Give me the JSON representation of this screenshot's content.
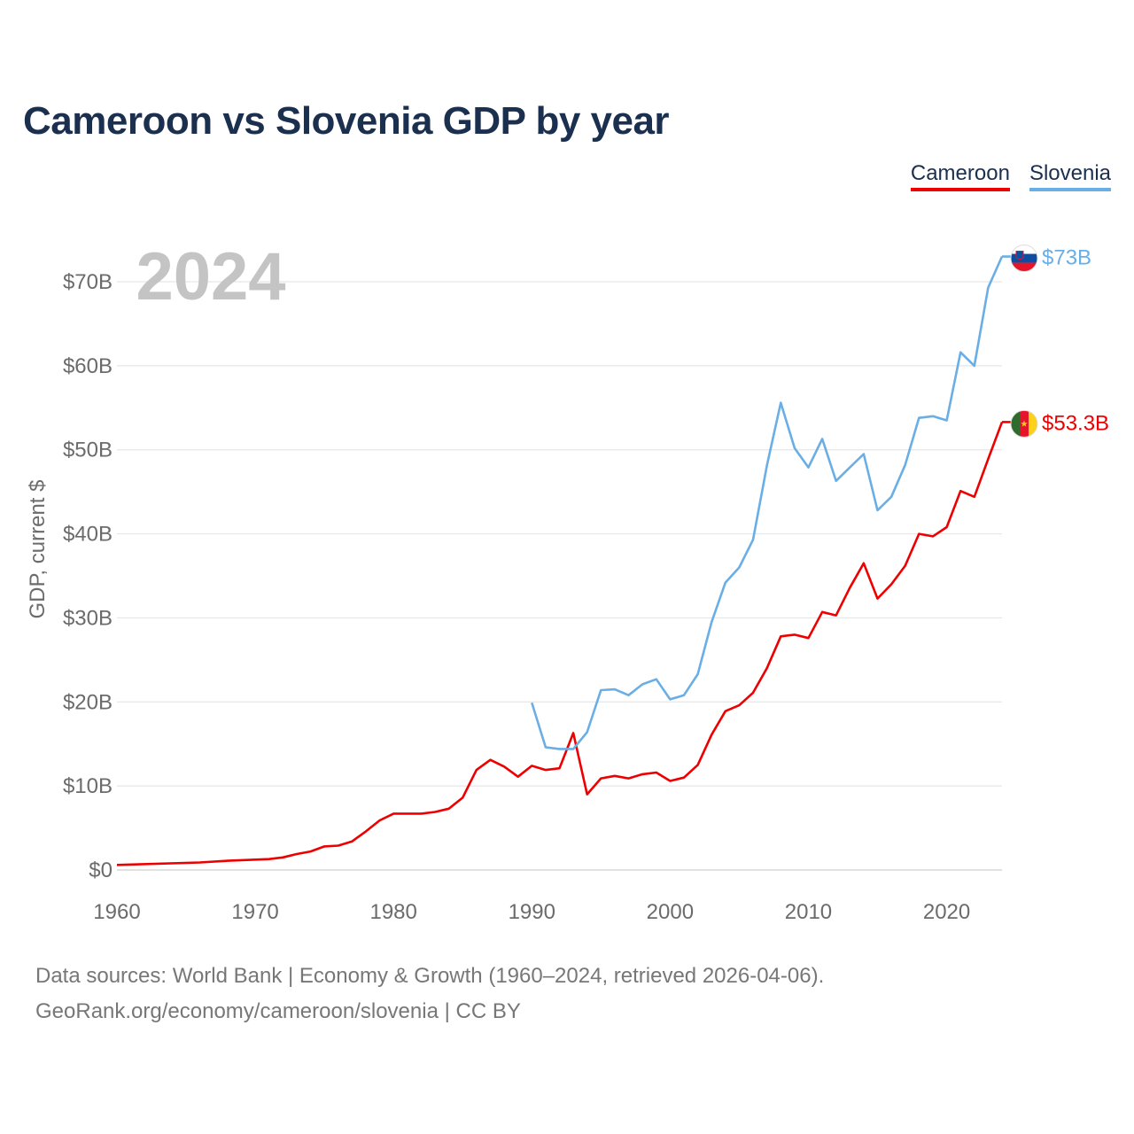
{
  "chart_data": {
    "type": "line",
    "title": "Cameroon vs Slovenia GDP by year",
    "ylabel": "GDP, current $",
    "xlabel": "",
    "year_label": "2024",
    "xlim": [
      1960,
      2024
    ],
    "ylim": [
      0,
      70
    ],
    "x_ticks": [
      {
        "value": 1960,
        "label": "1960"
      },
      {
        "value": 1970,
        "label": "1970"
      },
      {
        "value": 1980,
        "label": "1980"
      },
      {
        "value": 1990,
        "label": "1990"
      },
      {
        "value": 2000,
        "label": "2000"
      },
      {
        "value": 2010,
        "label": "2010"
      },
      {
        "value": 2020,
        "label": "2020"
      }
    ],
    "y_ticks": [
      {
        "value": 0,
        "label": "$0"
      },
      {
        "value": 10,
        "label": "$10B"
      },
      {
        "value": 20,
        "label": "$20B"
      },
      {
        "value": 30,
        "label": "$30B"
      },
      {
        "value": 40,
        "label": "$40B"
      },
      {
        "value": 50,
        "label": "$50B"
      },
      {
        "value": 60,
        "label": "$60B"
      },
      {
        "value": 70,
        "label": "$70B"
      }
    ],
    "units": "billions of current US$",
    "series": [
      {
        "name": "Cameroon",
        "color": "#ee0000",
        "end_label": "$53.3B",
        "flag_icon": "cameroon-flag-icon",
        "points": [
          [
            1960,
            0.6
          ],
          [
            1966,
            0.9
          ],
          [
            1968,
            1.1
          ],
          [
            1971,
            1.3
          ],
          [
            1972,
            1.5
          ],
          [
            1973,
            1.9
          ],
          [
            1974,
            2.2
          ],
          [
            1975,
            2.8
          ],
          [
            1976,
            2.9
          ],
          [
            1977,
            3.4
          ],
          [
            1978,
            4.6
          ],
          [
            1979,
            5.9
          ],
          [
            1980,
            6.7
          ],
          [
            1981,
            6.7
          ],
          [
            1982,
            6.7
          ],
          [
            1983,
            6.9
          ],
          [
            1984,
            7.3
          ],
          [
            1985,
            8.6
          ],
          [
            1986,
            11.9
          ],
          [
            1987,
            13.1
          ],
          [
            1988,
            12.3
          ],
          [
            1989,
            11.1
          ],
          [
            1990,
            12.4
          ],
          [
            1991,
            11.9
          ],
          [
            1992,
            12.1
          ],
          [
            1993,
            16.3
          ],
          [
            1994,
            9.0
          ],
          [
            1995,
            10.9
          ],
          [
            1996,
            11.2
          ],
          [
            1997,
            10.9
          ],
          [
            1998,
            11.4
          ],
          [
            1999,
            11.6
          ],
          [
            2000,
            10.6
          ],
          [
            2001,
            11.0
          ],
          [
            2002,
            12.5
          ],
          [
            2003,
            16.1
          ],
          [
            2004,
            18.9
          ],
          [
            2005,
            19.6
          ],
          [
            2006,
            21.1
          ],
          [
            2007,
            24.0
          ],
          [
            2008,
            27.8
          ],
          [
            2009,
            28.0
          ],
          [
            2010,
            27.6
          ],
          [
            2011,
            30.7
          ],
          [
            2012,
            30.3
          ],
          [
            2013,
            33.6
          ],
          [
            2014,
            36.5
          ],
          [
            2015,
            32.3
          ],
          [
            2016,
            34.0
          ],
          [
            2017,
            36.2
          ],
          [
            2018,
            40.0
          ],
          [
            2019,
            39.7
          ],
          [
            2020,
            40.8
          ],
          [
            2021,
            45.1
          ],
          [
            2022,
            44.4
          ],
          [
            2023,
            48.9
          ],
          [
            2024,
            53.3
          ]
        ]
      },
      {
        "name": "Slovenia",
        "color": "#6aaee6",
        "end_label": "$73B",
        "flag_icon": "slovenia-flag-icon",
        "points": [
          [
            1990,
            19.9
          ],
          [
            1991,
            14.6
          ],
          [
            1992,
            14.4
          ],
          [
            1993,
            14.4
          ],
          [
            1994,
            16.4
          ],
          [
            1995,
            21.4
          ],
          [
            1996,
            21.5
          ],
          [
            1997,
            20.8
          ],
          [
            1998,
            22.1
          ],
          [
            1999,
            22.7
          ],
          [
            2000,
            20.3
          ],
          [
            2001,
            20.8
          ],
          [
            2002,
            23.3
          ],
          [
            2003,
            29.5
          ],
          [
            2004,
            34.2
          ],
          [
            2005,
            36.0
          ],
          [
            2006,
            39.3
          ],
          [
            2007,
            48.1
          ],
          [
            2008,
            55.6
          ],
          [
            2009,
            50.2
          ],
          [
            2010,
            47.9
          ],
          [
            2011,
            51.3
          ],
          [
            2012,
            46.3
          ],
          [
            2013,
            47.9
          ],
          [
            2014,
            49.5
          ],
          [
            2015,
            42.8
          ],
          [
            2016,
            44.4
          ],
          [
            2017,
            48.2
          ],
          [
            2018,
            53.8
          ],
          [
            2019,
            54.0
          ],
          [
            2020,
            53.5
          ],
          [
            2021,
            61.6
          ],
          [
            2022,
            60.0
          ],
          [
            2023,
            69.3
          ],
          [
            2024,
            73.0
          ]
        ]
      }
    ]
  },
  "legend": {
    "items": [
      {
        "label": "Cameroon",
        "color": "#ee0000"
      },
      {
        "label": "Slovenia",
        "color": "#6aaee6"
      }
    ]
  },
  "source": {
    "line1": "Data sources: World Bank | Economy & Growth (1960–2024, retrieved 2026-04-06).",
    "line2": "GeoRank.org/economy/cameroon/slovenia | CC BY"
  }
}
